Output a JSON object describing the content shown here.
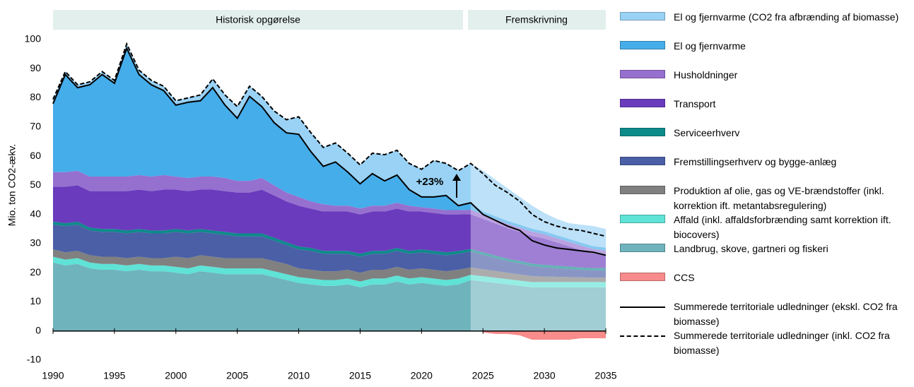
{
  "chart_data": {
    "type": "stacked_area",
    "y_label": "Mio. ton CO2-ækv.",
    "headers": [
      "Historisk opgørelse",
      "Fremskrivning"
    ],
    "annotation": "+23%",
    "x": [
      1990,
      1991,
      1992,
      1993,
      1994,
      1995,
      1996,
      1997,
      1998,
      1999,
      2000,
      2001,
      2002,
      2003,
      2004,
      2005,
      2006,
      2007,
      2008,
      2009,
      2010,
      2011,
      2012,
      2013,
      2014,
      2015,
      2016,
      2017,
      2018,
      2019,
      2020,
      2021,
      2022,
      2023,
      2024,
      2025,
      2026,
      2027,
      2028,
      2029,
      2030,
      2031,
      2032,
      2033,
      2034,
      2035
    ],
    "xlim": [
      1990,
      2035
    ],
    "xticks": [
      1990,
      1995,
      2000,
      2005,
      2010,
      2015,
      2020,
      2025,
      2030,
      2035
    ],
    "ylim": [
      -10,
      100
    ],
    "yticks": [
      -10,
      0,
      10,
      20,
      30,
      40,
      50,
      60,
      70,
      80,
      90,
      100
    ],
    "series": [
      {
        "name": "Landbrug, skove, gartneri og fiskeri",
        "color": "#6fb3bd",
        "values": [
          23.5,
          22.5,
          23,
          21.5,
          21,
          21,
          20.5,
          21,
          20.5,
          20.5,
          20,
          19.5,
          20.5,
          20,
          19.5,
          19.5,
          19.5,
          19.5,
          18.5,
          17.5,
          16.5,
          16,
          15.5,
          15.5,
          16,
          15,
          16,
          16,
          17,
          16,
          16.5,
          16,
          15.5,
          16,
          17.5,
          17,
          16.5,
          16,
          15.5,
          15,
          15,
          15,
          15,
          15,
          15,
          15
        ]
      },
      {
        "name": "Affald (inkl. affaldsforbrænding samt korrektion ift. biocovers)",
        "color": "#5ee3d6",
        "values": [
          2,
          2,
          2,
          2,
          2,
          2,
          2,
          2,
          2,
          2,
          2,
          2,
          2,
          2,
          2,
          2,
          2,
          2,
          2,
          2,
          2,
          2,
          2,
          2,
          2,
          2,
          2,
          2,
          2,
          2,
          2,
          2,
          2,
          2,
          1.8,
          1.8,
          1.8,
          1.8,
          1.8,
          1.8,
          1.8,
          1.8,
          1.8,
          1.8,
          1.8,
          1.8
        ]
      },
      {
        "name": "Produktion af olie, gas og VE-brændstoffer (inkl. korrektion ift. metantabsregulering)",
        "color": "#808080",
        "values": [
          2.5,
          2.5,
          2.5,
          2.5,
          2.5,
          2.5,
          2.5,
          2.5,
          2.5,
          2.5,
          3.5,
          3.5,
          3.5,
          3.5,
          3.5,
          3.5,
          3.5,
          3.5,
          3.5,
          3.5,
          3,
          3,
          3,
          3,
          3,
          3,
          3,
          3,
          3,
          3,
          3,
          3,
          3,
          3,
          2.5,
          2.4,
          2.3,
          2.2,
          2.1,
          2,
          1.9,
          1.8,
          1.7,
          1.6,
          1.5,
          1.5
        ]
      },
      {
        "name": "Fremstillingserhverv og bygge-anlæg",
        "color": "#4a5fa6",
        "values": [
          8.5,
          9,
          9,
          8.5,
          8.5,
          8.5,
          8.5,
          8.5,
          8.5,
          8.5,
          8.5,
          8.5,
          8,
          8,
          8,
          7.5,
          7.5,
          7.5,
          7,
          6.5,
          6.5,
          6.5,
          6,
          6,
          5.5,
          5.5,
          5.5,
          5.5,
          5.5,
          5.5,
          5.5,
          5.5,
          5.5,
          5.5,
          5.5,
          5,
          4.5,
          4,
          3.8,
          3.5,
          3.2,
          3,
          2.8,
          2.6,
          2.5,
          2.5
        ]
      },
      {
        "name": "Serviceerhverv",
        "color": "#0d8a8a",
        "values": [
          1,
          1,
          1,
          1,
          1,
          1,
          1,
          1,
          1,
          1,
          1,
          1,
          1,
          1,
          1,
          1,
          1,
          1,
          1,
          1,
          1,
          1,
          1,
          1,
          1,
          1,
          1,
          1,
          1,
          1,
          1,
          1,
          1,
          1,
          0.8,
          0.8,
          0.8,
          0.8,
          0.8,
          0.8,
          0.8,
          0.8,
          0.8,
          0.8,
          0.8,
          0.8
        ]
      },
      {
        "name": "Transport",
        "color": "#6a3bbd",
        "values": [
          12,
          12.5,
          12.5,
          12.5,
          13,
          13,
          13.5,
          13.5,
          13.5,
          14,
          13.5,
          13.5,
          13.5,
          14,
          14,
          14,
          14,
          15,
          14.5,
          14,
          14,
          13.5,
          13.5,
          13.5,
          13.5,
          13.5,
          13.5,
          13.5,
          13.5,
          13.5,
          13,
          13,
          13,
          12.5,
          12,
          11.5,
          11,
          10.5,
          10,
          9.5,
          9,
          8,
          7,
          6,
          5,
          4.5
        ]
      },
      {
        "name": "Husholdninger",
        "color": "#9670cf",
        "values": [
          5,
          5,
          5,
          5,
          5,
          5,
          5,
          5,
          5,
          5,
          4.5,
          4.5,
          4.5,
          4.5,
          4.5,
          4,
          4,
          4,
          3.5,
          3,
          3,
          2.5,
          2.5,
          2,
          2,
          2,
          2,
          2,
          2,
          2,
          1.5,
          1.5,
          1.5,
          1.5,
          1.5,
          1.5,
          1.5,
          1.5,
          1.5,
          1.5,
          1.5,
          1.5,
          1.5,
          1.5,
          1.5,
          1.5
        ]
      },
      {
        "name": "El og fjernvarme",
        "color": "#45adea",
        "values": [
          23.5,
          33.5,
          28.5,
          31.5,
          35,
          32,
          44,
          34.5,
          31.5,
          29,
          24.5,
          26,
          26,
          30.5,
          25,
          21.5,
          29,
          24.5,
          21.5,
          20.5,
          21.5,
          17,
          13,
          15,
          11.5,
          8.5,
          11,
          8.5,
          9.5,
          5.5,
          3.5,
          4,
          5,
          1.5,
          2.4,
          1,
          1,
          1,
          1,
          1,
          1,
          1,
          1,
          1,
          1,
          1
        ]
      },
      {
        "name": "El og fjernvarme (CO2 fra afbrænding af biomasse)",
        "color": "#99d2f5",
        "values": [
          1.5,
          1,
          1,
          1,
          1,
          1,
          1.5,
          1.5,
          1.5,
          1.5,
          1.5,
          1.5,
          2,
          3,
          3.5,
          4,
          3.5,
          3.5,
          4,
          4.5,
          6,
          6.5,
          6.5,
          6.5,
          6.5,
          6.5,
          7,
          9,
          8.5,
          9,
          9.5,
          12.5,
          11,
          12,
          13.5,
          14,
          12.6,
          11.2,
          9.5,
          7.9,
          6.3,
          5.6,
          5.4,
          6.2,
          6.9,
          6.4
        ]
      }
    ],
    "ccs": {
      "name": "CCS",
      "color": "#f88b8b",
      "values": [
        null,
        null,
        null,
        null,
        null,
        null,
        null,
        null,
        null,
        null,
        null,
        null,
        null,
        null,
        null,
        null,
        null,
        null,
        null,
        null,
        null,
        null,
        null,
        null,
        null,
        null,
        null,
        null,
        null,
        null,
        null,
        null,
        null,
        null,
        null,
        -0.5,
        -1,
        -1,
        -1.5,
        -3,
        -3,
        -3,
        -3,
        -2.5,
        -2.5,
        -2.5
      ]
    },
    "lines": [
      {
        "name": "Summerede territoriale udledninger (ekskl. CO2 fra biomasse)",
        "color": "#000000",
        "dashed": false,
        "values": [
          78,
          88,
          83.5,
          84.5,
          88,
          85,
          97,
          88,
          84.5,
          82.5,
          77.5,
          78.5,
          79,
          83.5,
          77.5,
          73,
          80.5,
          77,
          71.5,
          68,
          67.5,
          61.5,
          56.5,
          58,
          54.5,
          50.5,
          54,
          51.5,
          53.5,
          48.5,
          46,
          46,
          46.5,
          43,
          44,
          40,
          38,
          36,
          34.5,
          31,
          29.5,
          28.5,
          28,
          27.5,
          27,
          26
        ]
      },
      {
        "name": "Summerede territoriale udledninger (inkl. CO2 fra biomasse)",
        "color": "#000000",
        "dashed": true,
        "values": [
          79.5,
          89,
          84.5,
          85.5,
          89,
          86,
          98.5,
          89.5,
          86,
          84,
          79,
          80,
          81,
          86.5,
          81,
          77,
          84,
          80.5,
          75.5,
          72.5,
          73.5,
          68,
          63,
          64.5,
          61,
          57,
          61,
          60.5,
          62,
          57.5,
          55.5,
          58.5,
          57.5,
          55,
          57.5,
          54,
          50,
          47.5,
          44.5,
          40,
          37.5,
          36,
          35,
          34.5,
          33.5,
          32.5
        ]
      }
    ]
  }
}
